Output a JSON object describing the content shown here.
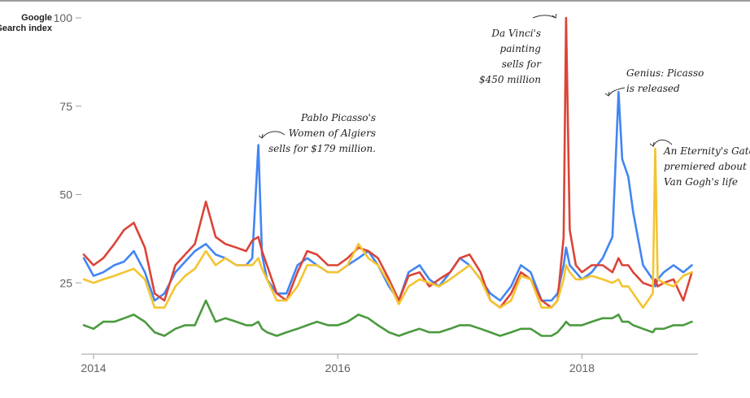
{
  "chart_data": {
    "type": "line",
    "ylabel": "Google\nSearch index",
    "ylim": [
      0,
      100
    ],
    "yticks": [
      25,
      50,
      75,
      100
    ],
    "xlim": [
      2013.9,
      2018.95
    ],
    "xticks": [
      {
        "value": 2014,
        "label": "2014"
      },
      {
        "value": 2016,
        "label": "2016"
      },
      {
        "value": 2018,
        "label": "2018"
      }
    ],
    "grid": false,
    "legend": "none",
    "x": [
      2013.92,
      2014.0,
      2014.08,
      2014.17,
      2014.25,
      2014.33,
      2014.42,
      2014.5,
      2014.58,
      2014.67,
      2014.75,
      2014.83,
      2014.92,
      2015.0,
      2015.08,
      2015.17,
      2015.25,
      2015.3,
      2015.35,
      2015.38,
      2015.42,
      2015.5,
      2015.58,
      2015.67,
      2015.75,
      2015.83,
      2015.92,
      2016.0,
      2016.08,
      2016.17,
      2016.25,
      2016.33,
      2016.42,
      2016.5,
      2016.58,
      2016.67,
      2016.75,
      2016.83,
      2016.92,
      2017.0,
      2017.08,
      2017.17,
      2017.25,
      2017.33,
      2017.42,
      2017.5,
      2017.58,
      2017.67,
      2017.75,
      2017.8,
      2017.85,
      2017.87,
      2017.9,
      2017.95,
      2018.0,
      2018.08,
      2018.17,
      2018.25,
      2018.3,
      2018.33,
      2018.38,
      2018.42,
      2018.5,
      2018.58,
      2018.6,
      2018.62,
      2018.67,
      2018.75,
      2018.83,
      2018.9
    ],
    "series": [
      {
        "color": "#4285f4",
        "values": [
          32,
          27,
          28,
          30,
          31,
          34,
          28,
          20,
          22,
          28,
          31,
          34,
          36,
          33,
          32,
          30,
          30,
          32,
          64,
          33,
          26,
          22,
          22,
          30,
          32,
          30,
          28,
          28,
          30,
          32,
          34,
          30,
          24,
          20,
          28,
          30,
          26,
          24,
          28,
          32,
          30,
          26,
          22,
          20,
          24,
          30,
          28,
          20,
          20,
          22,
          30,
          35,
          30,
          28,
          26,
          28,
          32,
          38,
          79,
          60,
          55,
          45,
          30,
          26,
          24,
          26,
          28,
          30,
          28,
          30
        ]
      },
      {
        "color": "#db4437",
        "values": [
          33,
          30,
          32,
          36,
          40,
          42,
          35,
          22,
          20,
          30,
          33,
          36,
          48,
          38,
          36,
          35,
          34,
          37,
          38,
          34,
          30,
          22,
          20,
          28,
          34,
          33,
          30,
          30,
          32,
          35,
          34,
          32,
          26,
          20,
          27,
          28,
          24,
          26,
          28,
          32,
          33,
          28,
          20,
          18,
          22,
          28,
          26,
          20,
          18,
          20,
          38,
          100,
          40,
          30,
          28,
          30,
          30,
          28,
          32,
          30,
          30,
          28,
          25,
          24,
          26,
          24,
          25,
          26,
          20,
          28
        ]
      },
      {
        "color": "#f4c430",
        "values": [
          26,
          25,
          26,
          27,
          28,
          29,
          26,
          18,
          18,
          24,
          27,
          29,
          34,
          30,
          32,
          30,
          30,
          30,
          32,
          29,
          26,
          20,
          20,
          24,
          30,
          30,
          28,
          28,
          30,
          36,
          32,
          30,
          25,
          19,
          24,
          26,
          25,
          24,
          26,
          28,
          30,
          26,
          20,
          18,
          20,
          27,
          26,
          18,
          18,
          20,
          26,
          30,
          28,
          26,
          26,
          27,
          26,
          25,
          26,
          24,
          24,
          22,
          18,
          22,
          63,
          26,
          25,
          24,
          27,
          28
        ]
      },
      {
        "color": "#4b9a3f",
        "values": [
          13,
          12,
          14,
          14,
          15,
          16,
          14,
          11,
          10,
          12,
          13,
          13,
          20,
          14,
          15,
          14,
          13,
          13,
          14,
          12,
          11,
          10,
          11,
          12,
          13,
          14,
          13,
          13,
          14,
          16,
          15,
          13,
          11,
          10,
          11,
          12,
          11,
          11,
          12,
          13,
          13,
          12,
          11,
          10,
          11,
          12,
          12,
          10,
          10,
          11,
          13,
          14,
          13,
          13,
          13,
          14,
          15,
          15,
          16,
          14,
          14,
          13,
          12,
          11,
          12,
          12,
          12,
          13,
          13,
          14
        ]
      }
    ],
    "annotations": [
      {
        "id": "picasso",
        "lines": [
          "Pablo Picasso's",
          "Women of Algiers",
          "sells for $179 million."
        ]
      },
      {
        "id": "davinci",
        "lines": [
          "Da Vinci's",
          "painting",
          "sells for",
          "$450 million"
        ]
      },
      {
        "id": "genius",
        "lines": [
          "Genius: Picasso",
          "is released"
        ]
      },
      {
        "id": "eternity",
        "lines": [
          "An Eternity's Gate",
          "premiered about",
          "Van Gogh's life"
        ]
      }
    ]
  }
}
